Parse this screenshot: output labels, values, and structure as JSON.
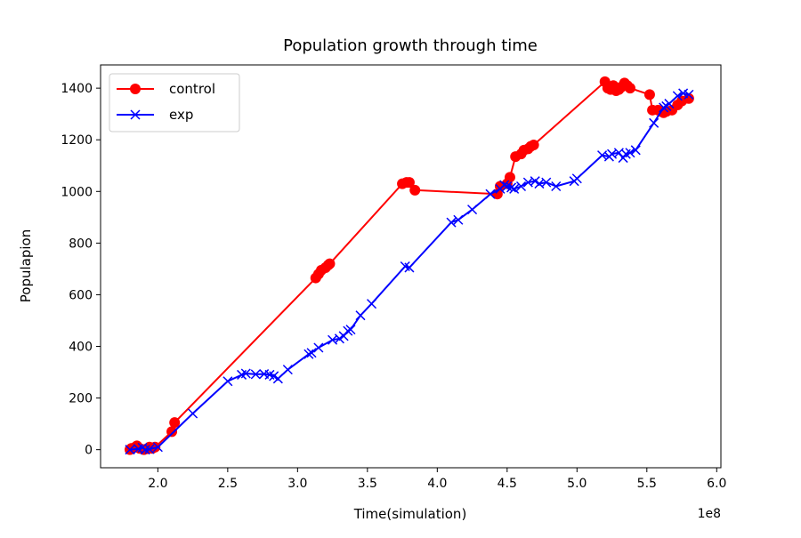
{
  "chart_data": {
    "type": "line",
    "title": "Population growth through time",
    "xlabel": "Time(simulation)",
    "ylabel": "Populapion",
    "x_multiplier_label": "1e8",
    "xlim": [
      1.59,
      6.03
    ],
    "ylim": [
      -70,
      1490
    ],
    "x_ticks": [
      2.0,
      2.5,
      3.0,
      3.5,
      4.0,
      4.5,
      5.0,
      5.5,
      6.0
    ],
    "x_tick_labels": [
      "2.0",
      "2.5",
      "3.0",
      "3.5",
      "4.0",
      "4.5",
      "5.0",
      "5.5",
      "6.0"
    ],
    "y_ticks": [
      0,
      200,
      400,
      600,
      800,
      1000,
      1200,
      1400
    ],
    "y_tick_labels": [
      "0",
      "200",
      "400",
      "600",
      "800",
      "1000",
      "1200",
      "1400"
    ],
    "grid": false,
    "legend_position": "top-left",
    "series": [
      {
        "name": "control",
        "color": "#ff0000",
        "marker": "circle",
        "x": [
          1.8,
          1.81,
          1.84,
          1.85,
          1.87,
          1.9,
          1.92,
          1.94,
          1.96,
          1.98,
          2.1,
          2.12,
          3.13,
          3.15,
          3.17,
          3.2,
          3.22,
          3.23,
          3.75,
          3.78,
          3.8,
          3.84,
          4.43,
          4.45,
          4.5,
          4.52,
          4.56,
          4.6,
          4.62,
          4.65,
          4.67,
          4.69,
          5.2,
          5.22,
          5.24,
          5.26,
          5.28,
          5.3,
          5.32,
          5.34,
          5.36,
          5.38,
          5.52,
          5.54,
          5.58,
          5.6,
          5.62,
          5.64,
          5.68,
          5.72,
          5.75,
          5.8
        ],
        "y": [
          0,
          5,
          10,
          15,
          5,
          0,
          3,
          10,
          5,
          10,
          70,
          105,
          665,
          680,
          695,
          705,
          715,
          720,
          1030,
          1035,
          1035,
          1005,
          990,
          1020,
          1030,
          1055,
          1135,
          1145,
          1160,
          1165,
          1175,
          1180,
          1425,
          1400,
          1395,
          1410,
          1390,
          1395,
          1405,
          1420,
          1410,
          1400,
          1375,
          1315,
          1315,
          1310,
          1305,
          1310,
          1315,
          1335,
          1350,
          1360
        ]
      },
      {
        "name": "exp",
        "color": "#0000ff",
        "marker": "x",
        "x": [
          1.8,
          1.86,
          1.89,
          1.91,
          1.94,
          2.0,
          2.25,
          2.5,
          2.6,
          2.63,
          2.7,
          2.76,
          2.8,
          2.83,
          2.86,
          2.93,
          3.08,
          3.1,
          3.15,
          3.25,
          3.3,
          3.33,
          3.36,
          3.38,
          3.45,
          3.53,
          3.77,
          3.8,
          4.1,
          4.15,
          4.25,
          4.38,
          4.45,
          4.48,
          4.5,
          4.53,
          4.55,
          4.6,
          4.65,
          4.7,
          4.73,
          4.78,
          4.85,
          4.98,
          5.0,
          5.18,
          5.23,
          5.25,
          5.3,
          5.33,
          5.35,
          5.38,
          5.42,
          5.55,
          5.62,
          5.64,
          5.66,
          5.72,
          5.76,
          5.8
        ],
        "y": [
          0,
          3,
          8,
          0,
          2,
          10,
          140,
          265,
          290,
          295,
          292,
          293,
          290,
          285,
          275,
          310,
          370,
          375,
          395,
          425,
          430,
          440,
          460,
          465,
          520,
          565,
          710,
          705,
          880,
          890,
          930,
          990,
          1010,
          1025,
          1020,
          1015,
          1010,
          1020,
          1035,
          1040,
          1030,
          1035,
          1020,
          1040,
          1050,
          1140,
          1135,
          1145,
          1150,
          1130,
          1145,
          1150,
          1160,
          1265,
          1325,
          1330,
          1340,
          1370,
          1380,
          1375
        ]
      }
    ]
  }
}
